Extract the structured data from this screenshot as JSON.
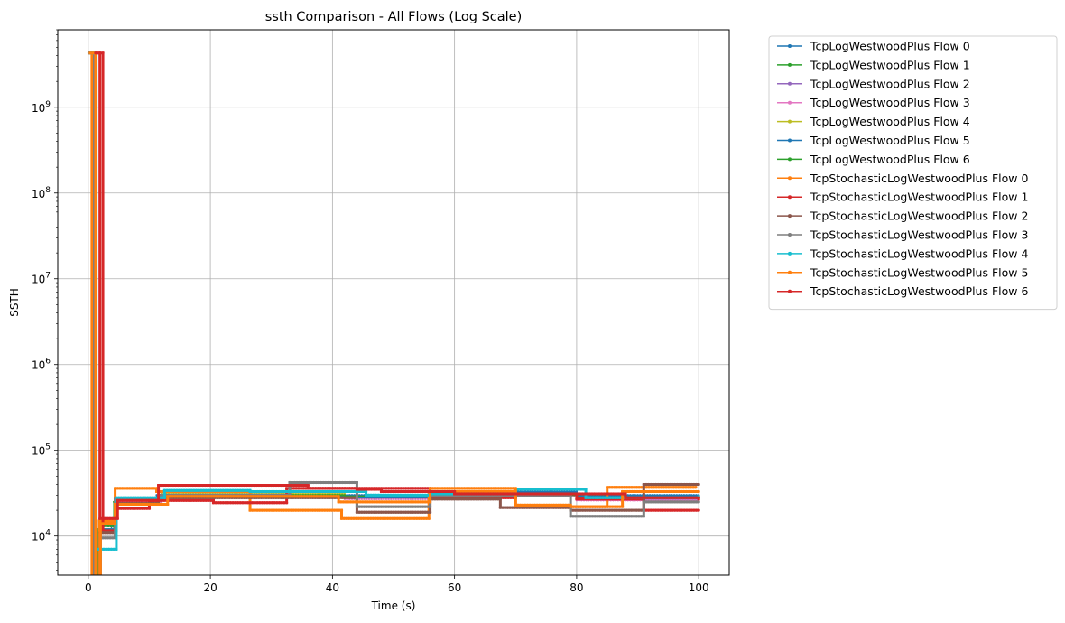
{
  "chart_data": {
    "type": "line",
    "title": "ssth Comparison - All Flows (Log Scale)",
    "xlabel": "Time (s)",
    "ylabel": "SSTH",
    "yscale": "log",
    "xlim": [
      -5,
      105
    ],
    "ylim": [
      3500,
      8000000000
    ],
    "x_ticks": [
      0,
      20,
      40,
      60,
      80,
      100
    ],
    "x_tick_labels": [
      "0",
      "20",
      "40",
      "60",
      "80",
      "100"
    ],
    "y_ticks": [
      10000,
      100000,
      1000000,
      10000000,
      100000000,
      1000000000
    ],
    "y_tick_labels": [
      {
        "base": "10",
        "exp": "4"
      },
      {
        "base": "10",
        "exp": "5"
      },
      {
        "base": "10",
        "exp": "6"
      },
      {
        "base": "10",
        "exp": "7"
      },
      {
        "base": "10",
        "exp": "8"
      },
      {
        "base": "10",
        "exp": "9"
      }
    ],
    "grid": true,
    "legend_position": "outside-upper-right",
    "series": [
      {
        "name": "TcpLogWestwoodPlus Flow 0",
        "color": "#1f77b4",
        "lw": 1.5,
        "steps": [
          [
            0.2,
            4290000000
          ],
          [
            0.8,
            3000
          ],
          [
            1.6,
            12000
          ],
          [
            3.8,
            14000
          ],
          [
            4.6,
            27000
          ],
          [
            11.2,
            30000
          ],
          [
            40,
            30000
          ],
          [
            56,
            33000
          ],
          [
            80,
            30000
          ],
          [
            100,
            30000
          ]
        ]
      },
      {
        "name": "TcpLogWestwoodPlus Flow 1",
        "color": "#2ca02c",
        "lw": 1.5,
        "steps": [
          [
            0.2,
            4290000000
          ],
          [
            0.8,
            3000
          ],
          [
            1.6,
            12000
          ],
          [
            4.2,
            25000
          ],
          [
            12,
            30000
          ],
          [
            41,
            29000
          ],
          [
            56,
            31000
          ],
          [
            70,
            29000
          ],
          [
            85,
            28000
          ],
          [
            100,
            28000
          ]
        ]
      },
      {
        "name": "TcpLogWestwoodPlus Flow 2",
        "color": "#9467bd",
        "lw": 1.5,
        "steps": [
          [
            0.2,
            4290000000
          ],
          [
            0.8,
            3000
          ],
          [
            1.8,
            13000
          ],
          [
            4.4,
            26000
          ],
          [
            12,
            28000
          ],
          [
            42,
            27000
          ],
          [
            56,
            30000
          ],
          [
            80,
            27000
          ],
          [
            100,
            27000
          ]
        ]
      },
      {
        "name": "TcpLogWestwoodPlus Flow 3",
        "color": "#e377c2",
        "lw": 1.5,
        "steps": [
          [
            0.2,
            4290000000
          ],
          [
            0.8,
            3000
          ],
          [
            1.8,
            12000
          ],
          [
            4.4,
            25000
          ],
          [
            12,
            29000
          ],
          [
            42,
            27000
          ],
          [
            56,
            29000
          ],
          [
            80,
            26000
          ],
          [
            100,
            26000
          ]
        ]
      },
      {
        "name": "TcpLogWestwoodPlus Flow 4",
        "color": "#bcbd22",
        "lw": 1.5,
        "steps": [
          [
            0.2,
            4290000000
          ],
          [
            0.8,
            3000
          ],
          [
            1.8,
            14000
          ],
          [
            4.4,
            27000
          ],
          [
            12,
            31000
          ],
          [
            42,
            28000
          ],
          [
            56,
            31000
          ],
          [
            80,
            28000
          ],
          [
            100,
            28000
          ]
        ]
      },
      {
        "name": "TcpLogWestwoodPlus Flow 5",
        "color": "#1f77b4",
        "lw": 1.5,
        "steps": [
          [
            0.2,
            4290000000
          ],
          [
            0.8,
            3000
          ],
          [
            1.8,
            12000
          ],
          [
            4.4,
            26000
          ],
          [
            12,
            29000
          ],
          [
            42,
            28000
          ],
          [
            56,
            32000
          ],
          [
            80,
            29000
          ],
          [
            100,
            29000
          ]
        ]
      },
      {
        "name": "TcpLogWestwoodPlus Flow 6",
        "color": "#2ca02c",
        "lw": 1.5,
        "steps": [
          [
            0.2,
            4290000000
          ],
          [
            0.8,
            3000
          ],
          [
            1.8,
            13000
          ],
          [
            4.4,
            27000
          ],
          [
            12,
            30000
          ],
          [
            42,
            29000
          ],
          [
            56,
            30000
          ],
          [
            80,
            28000
          ],
          [
            100,
            28000
          ]
        ]
      },
      {
        "name": "TcpStochasticLogWestwoodPlus Flow 0",
        "color": "#ff7f0e",
        "lw": 3,
        "steps": [
          [
            0.1,
            4290000000
          ],
          [
            0.6,
            3000
          ],
          [
            1.8,
            15000
          ],
          [
            4.4,
            36000
          ],
          [
            11.2,
            33000
          ],
          [
            26.5,
            20000
          ],
          [
            41.5,
            16000
          ],
          [
            55.8,
            33000
          ],
          [
            70,
            22000
          ],
          [
            85,
            37000
          ],
          [
            99.5,
            36000
          ]
        ]
      },
      {
        "name": "TcpStochasticLogWestwoodPlus Flow 1",
        "color": "#d62728",
        "lw": 3,
        "steps": [
          [
            1.8,
            4290000000
          ],
          [
            2.4,
            11500
          ],
          [
            4.6,
            21000
          ],
          [
            10,
            26000
          ],
          [
            20.5,
            24500
          ],
          [
            32.5,
            36000
          ],
          [
            56,
            28000
          ],
          [
            70,
            31000
          ],
          [
            80,
            27000
          ],
          [
            91,
            20000
          ],
          [
            100,
            20000
          ]
        ]
      },
      {
        "name": "TcpStochasticLogWestwoodPlus Flow 2",
        "color": "#8c564b",
        "lw": 3,
        "steps": [
          [
            0.2,
            4290000000
          ],
          [
            1,
            3000
          ],
          [
            2,
            11000
          ],
          [
            4.4,
            24000
          ],
          [
            11.5,
            28000
          ],
          [
            44,
            19000
          ],
          [
            56,
            27000
          ],
          [
            67.5,
            21500
          ],
          [
            79,
            20000
          ],
          [
            91,
            40000
          ],
          [
            100,
            40000
          ]
        ]
      },
      {
        "name": "TcpStochasticLogWestwoodPlus Flow 3",
        "color": "#7f7f7f",
        "lw": 3,
        "steps": [
          [
            0.2,
            4290000000
          ],
          [
            1,
            3000
          ],
          [
            2,
            9500
          ],
          [
            4.4,
            27000
          ],
          [
            11.5,
            30000
          ],
          [
            33,
            42000
          ],
          [
            44,
            22000
          ],
          [
            56,
            30000
          ],
          [
            79,
            17000
          ],
          [
            91,
            25000
          ],
          [
            100,
            25000
          ]
        ]
      },
      {
        "name": "TcpStochasticLogWestwoodPlus Flow 4",
        "color": "#17becf",
        "lw": 3,
        "steps": [
          [
            0.3,
            4290000000
          ],
          [
            1.3,
            7000
          ],
          [
            4.6,
            28000
          ],
          [
            12.5,
            34000
          ],
          [
            26.5,
            33000
          ],
          [
            45.5,
            30000
          ],
          [
            56,
            31000
          ],
          [
            70,
            35000
          ],
          [
            81.5,
            28000
          ],
          [
            100,
            30000
          ]
        ]
      },
      {
        "name": "TcpStochasticLogWestwoodPlus Flow 5",
        "color": "#ff7f0e",
        "lw": 3,
        "steps": [
          [
            0.3,
            4290000000
          ],
          [
            1.2,
            3000
          ],
          [
            2,
            14000
          ],
          [
            4.4,
            23500
          ],
          [
            13,
            29000
          ],
          [
            41,
            25000
          ],
          [
            56,
            36000
          ],
          [
            70,
            23000
          ],
          [
            79,
            22000
          ],
          [
            87.5,
            33000
          ],
          [
            100,
            33000
          ]
        ]
      },
      {
        "name": "TcpStochasticLogWestwoodPlus Flow 6",
        "color": "#d62728",
        "lw": 3,
        "steps": [
          [
            1.2,
            4290000000
          ],
          [
            1.9,
            16000
          ],
          [
            4.8,
            26000
          ],
          [
            11.5,
            39000
          ],
          [
            36,
            36000
          ],
          [
            44,
            35000
          ],
          [
            48,
            33000
          ],
          [
            60,
            31000
          ],
          [
            79,
            31000
          ],
          [
            88,
            28000
          ],
          [
            100,
            26000
          ]
        ]
      }
    ]
  }
}
